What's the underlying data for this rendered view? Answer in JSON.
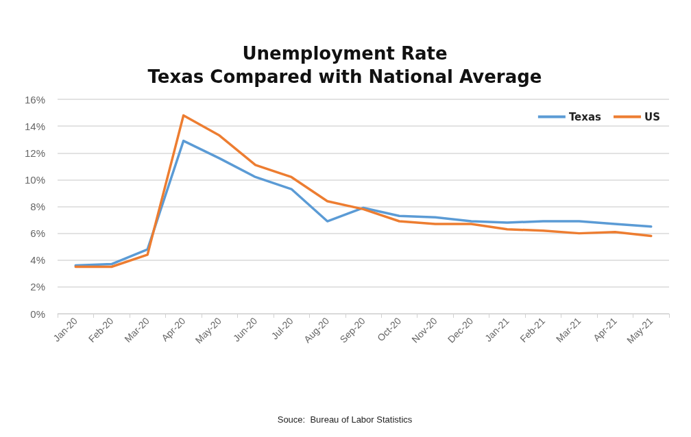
{
  "chart_data": {
    "type": "line",
    "title": "Unemployment Rate",
    "subtitle": "Texas Compared with National Average",
    "annotations": [
      "Souce:  Bureau of Labor Statistics"
    ],
    "categories": [
      "Jan-20",
      "Feb-20",
      "Mar-20",
      "Apr-20",
      "May-20",
      "Jun-20",
      "Jul-20",
      "Aug-20",
      "Sep-20",
      "Oct-20",
      "Nov-20",
      "Dec-20",
      "Jan-21",
      "Feb-21",
      "Mar-21",
      "Apr-21",
      "May-21"
    ],
    "series": [
      {
        "name": "Texas",
        "color": "#5b9bd5",
        "values": [
          3.6,
          3.7,
          4.8,
          12.9,
          11.6,
          10.2,
          9.3,
          6.9,
          7.9,
          7.3,
          7.2,
          6.9,
          6.8,
          6.9,
          6.9,
          6.7,
          6.5
        ]
      },
      {
        "name": "US",
        "color": "#ed7d31",
        "values": [
          3.5,
          3.5,
          4.4,
          14.8,
          13.3,
          11.1,
          10.2,
          8.4,
          7.8,
          6.9,
          6.7,
          6.7,
          6.3,
          6.2,
          6.0,
          6.1,
          5.8
        ]
      }
    ],
    "ylim": [
      0,
      16
    ],
    "yticks": [
      {
        "value": 0,
        "label": "0%"
      },
      {
        "value": 2,
        "label": "2%"
      },
      {
        "value": 4,
        "label": "4%"
      },
      {
        "value": 6,
        "label": "6%"
      },
      {
        "value": 8,
        "label": "8%"
      },
      {
        "value": 10,
        "label": "10%"
      },
      {
        "value": 12,
        "label": "12%"
      },
      {
        "value": 14,
        "label": "14%"
      },
      {
        "value": 16,
        "label": "16%"
      }
    ],
    "grid": "y",
    "legend": "top right",
    "marker": "none",
    "line_style": "solid"
  }
}
